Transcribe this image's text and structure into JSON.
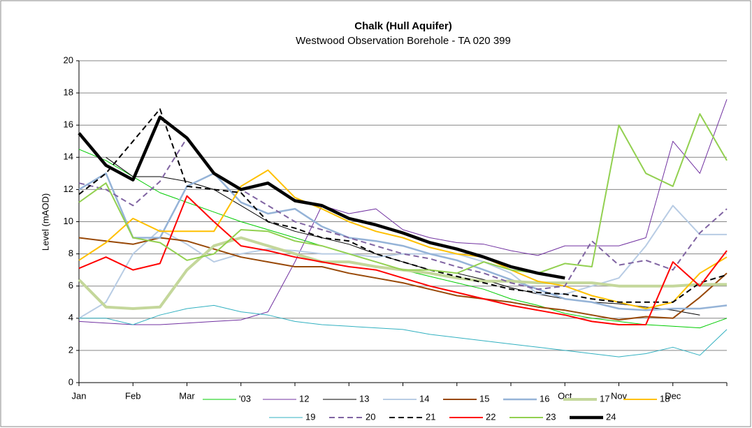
{
  "chart_data": {
    "type": "line",
    "title": "Chalk (Hull Aquifer)",
    "subtitle": "Westwood Observation Borehole - TA 020 399",
    "y_label": "Level (mAOD)",
    "categories": [
      "Jan",
      null,
      "Feb",
      null,
      "Mar",
      null,
      null,
      null,
      null,
      null,
      null,
      null,
      null,
      null,
      null,
      null,
      null,
      null,
      "Oct",
      null,
      "Nov",
      null,
      "Dec",
      null,
      null
    ],
    "ylim": [
      0,
      20
    ],
    "yticks": [
      0,
      2,
      4,
      6,
      8,
      10,
      12,
      14,
      16,
      18,
      20
    ],
    "grid": true,
    "series": [
      {
        "name": "'03",
        "color": "#00cc00",
        "width": 1,
        "values": [
          14.5,
          13.8,
          12.8,
          11.8,
          11.2,
          10.6,
          10.0,
          9.5,
          9.0,
          8.5,
          8.0,
          7.5,
          7.0,
          6.6,
          6.2,
          5.8,
          5.2,
          4.8,
          4.3,
          4.0,
          3.8,
          3.6,
          3.5,
          3.4,
          4.0
        ]
      },
      {
        "name": "12",
        "color": "#7030a0",
        "width": 1,
        "values": [
          3.8,
          3.7,
          3.6,
          3.6,
          3.7,
          3.8,
          3.9,
          4.4,
          7.5,
          11.0,
          10.5,
          10.8,
          9.5,
          9.0,
          8.7,
          8.6,
          8.2,
          7.9,
          8.5,
          8.5,
          8.5,
          9.0,
          15.0,
          13.0,
          17.6
        ]
      },
      {
        "name": "13",
        "color": "#000000",
        "width": 1,
        "values": [
          null,
          14.0,
          12.8,
          12.8,
          12.5,
          12.0,
          11.0,
          10.0,
          9.4,
          9.0,
          8.6,
          8.0,
          7.5,
          7.0,
          6.8,
          6.4,
          5.9,
          5.5,
          5.2,
          5.0,
          4.9,
          4.7,
          4.5,
          4.2,
          null
        ]
      },
      {
        "name": "14",
        "color": "#b8cce4",
        "width": 2,
        "values": [
          4.0,
          5.0,
          8.0,
          9.5,
          8.6,
          7.5,
          8.0,
          8.3,
          8.2,
          8.0,
          8.0,
          7.8,
          8.0,
          8.0,
          8.0,
          7.5,
          6.8,
          5.5,
          5.5,
          6.0,
          6.5,
          8.5,
          11.0,
          9.2,
          9.2
        ]
      },
      {
        "name": "15",
        "color": "#984807",
        "width": 2,
        "values": [
          9.0,
          8.8,
          8.6,
          9.0,
          8.8,
          8.3,
          7.8,
          7.5,
          7.2,
          7.2,
          6.8,
          6.5,
          6.2,
          5.8,
          5.4,
          5.2,
          5.0,
          4.7,
          4.5,
          4.2,
          3.9,
          4.1,
          4.0,
          5.3,
          6.8
        ]
      },
      {
        "name": "16",
        "color": "#95b3d7",
        "width": 2.5,
        "values": [
          12.0,
          13.0,
          9.0,
          9.0,
          12.2,
          13.0,
          11.2,
          10.5,
          10.8,
          9.7,
          9.0,
          8.8,
          8.5,
          8.0,
          7.6,
          7.0,
          6.4,
          5.8,
          5.2,
          5.0,
          4.6,
          4.5,
          4.6,
          4.6,
          4.8
        ]
      },
      {
        "name": "17",
        "color": "#c4d79b",
        "width": 4,
        "values": [
          6.4,
          4.7,
          4.6,
          4.7,
          7.0,
          8.5,
          9.0,
          8.5,
          8.0,
          7.5,
          7.5,
          7.2,
          7.0,
          6.8,
          6.5,
          6.3,
          6.3,
          6.2,
          6.2,
          6.2,
          6.0,
          6.0,
          6.0,
          6.1,
          6.1
        ]
      },
      {
        "name": "18",
        "color": "#ffc000",
        "width": 2,
        "values": [
          7.6,
          8.7,
          10.2,
          9.4,
          9.4,
          9.4,
          12.2,
          13.2,
          11.5,
          10.8,
          10.0,
          9.4,
          9.0,
          8.4,
          8.0,
          7.8,
          7.0,
          6.3,
          6.0,
          5.4,
          5.0,
          4.6,
          5.0,
          6.8,
          7.8
        ]
      },
      {
        "name": "19",
        "color": "#31b0c0",
        "width": 1,
        "values": [
          4.0,
          4.0,
          3.6,
          4.2,
          4.6,
          4.8,
          4.4,
          4.2,
          3.8,
          3.6,
          3.5,
          3.4,
          3.3,
          3.0,
          2.8,
          2.6,
          2.4,
          2.2,
          2.0,
          1.8,
          1.6,
          1.8,
          2.2,
          1.7,
          3.3
        ]
      },
      {
        "name": "20",
        "color": "#8064a2",
        "width": 2,
        "dash": true,
        "values": [
          12.4,
          12.0,
          11.0,
          12.5,
          15.2,
          13.0,
          12.0,
          11.0,
          10.0,
          9.5,
          9.0,
          8.5,
          8.0,
          7.7,
          7.2,
          6.8,
          6.2,
          5.8,
          6.0,
          8.8,
          7.3,
          7.6,
          7.0,
          9.3,
          10.8
        ]
      },
      {
        "name": "21",
        "color": "#000000",
        "width": 2,
        "dash": true,
        "values": [
          11.7,
          13.0,
          15.0,
          17.0,
          12.2,
          12.0,
          11.8,
          10.0,
          9.6,
          9.0,
          8.8,
          8.0,
          7.5,
          7.0,
          6.6,
          6.2,
          5.8,
          5.6,
          5.5,
          5.2,
          5.0,
          5.0,
          5.0,
          6.2,
          6.7
        ]
      },
      {
        "name": "22",
        "color": "#ff0000",
        "width": 2,
        "values": [
          7.1,
          7.8,
          7.0,
          7.4,
          11.6,
          10.0,
          8.5,
          8.2,
          7.8,
          7.5,
          7.2,
          7.0,
          6.5,
          6.0,
          5.6,
          5.2,
          4.8,
          4.5,
          4.2,
          3.8,
          3.6,
          3.6,
          7.5,
          6.0,
          8.2
        ]
      },
      {
        "name": "23",
        "color": "#92d050",
        "width": 2,
        "values": [
          11.2,
          12.4,
          9.0,
          8.7,
          7.6,
          8.0,
          9.5,
          9.4,
          8.8,
          8.5,
          8.0,
          7.5,
          7.0,
          7.0,
          6.8,
          7.5,
          7.0,
          6.8,
          7.4,
          7.2,
          16.0,
          13.0,
          12.2,
          16.7,
          13.8
        ]
      },
      {
        "name": "24",
        "color": "#000000",
        "width": 4.5,
        "values": [
          15.5,
          13.5,
          12.6,
          16.5,
          15.2,
          13.0,
          12.0,
          12.4,
          11.3,
          11.0,
          10.2,
          9.8,
          9.3,
          8.7,
          8.3,
          7.8,
          7.2,
          6.8,
          6.5,
          null,
          null,
          null,
          null,
          null,
          null
        ]
      }
    ]
  }
}
